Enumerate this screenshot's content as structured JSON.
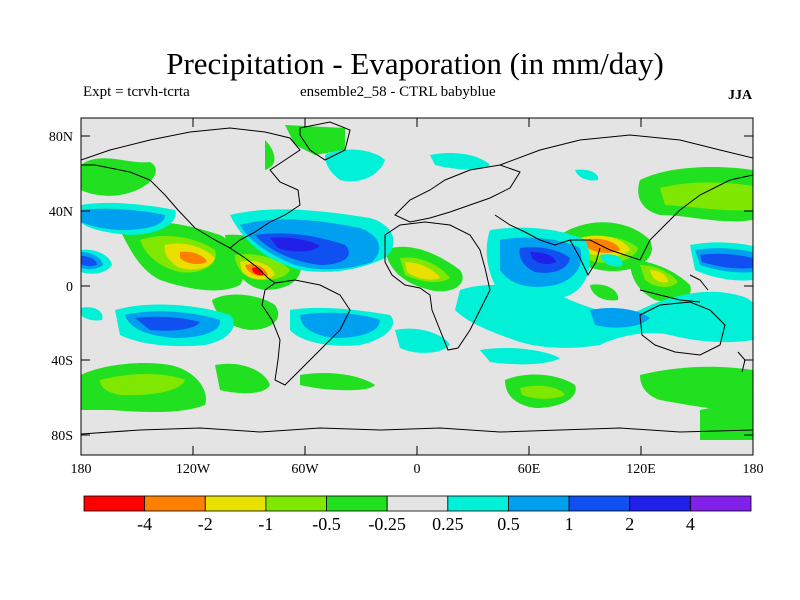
{
  "title": "Precipitation - Evaporation (in mm/day)",
  "subtitle_left": "Expt = tcrvh-tcrta",
  "subtitle_center": "ensemble2_58 - CTRL babyblue",
  "season": "JJA",
  "axes": {
    "y_labels": [
      "80N",
      "40N",
      "0",
      "40S",
      "80S"
    ],
    "x_labels": [
      "180",
      "120W",
      "60W",
      "0",
      "60E",
      "120E",
      "180"
    ]
  },
  "colorbar": {
    "colors": [
      "#ff0000",
      "#ff8000",
      "#e8e000",
      "#80e800",
      "#20e020",
      "#e4e4e4",
      "#00f0d8",
      "#00a0f0",
      "#1050f0",
      "#2020e8",
      "#8020e8"
    ],
    "labels": [
      "-4",
      "-2",
      "-1",
      "-0.5",
      "-0.25",
      "0.25",
      "0.5",
      "1",
      "2",
      "4"
    ]
  },
  "legend_classes": {
    "strong_dry": "#ff0000",
    "dry": "#ff8000",
    "moderate_dry": "#e8e000",
    "light_dry": "#80e800",
    "weak_dry": "#20e020",
    "near_zero": "#e4e4e4",
    "weak_wet": "#00f0d8",
    "light_wet": "#00a0f0",
    "moderate_wet": "#1050f0",
    "strong_wet": "#2020e8",
    "very_strong_wet": "#8020e8"
  }
}
